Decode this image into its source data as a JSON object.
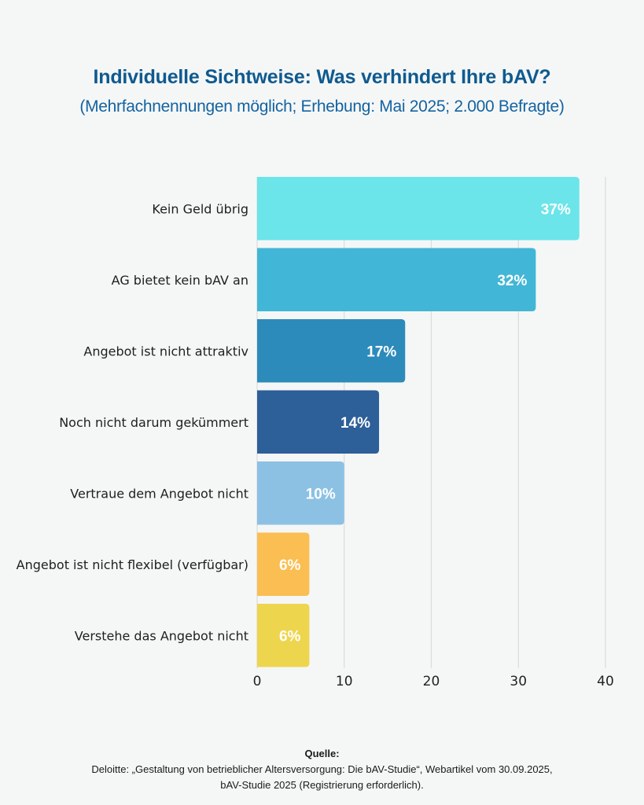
{
  "header": {
    "title": "Individuelle Sichtweise: Was verhindert Ihre bAV?",
    "subtitle": "(Mehrfachnennungen möglich; Erhebung: Mai 2025; 2.000 Befragte)"
  },
  "chart_data": {
    "type": "bar",
    "orientation": "horizontal",
    "title": "Individuelle Sichtweise: Was verhindert Ihre bAV?",
    "subtitle": "(Mehrfachnennungen möglich; Erhebung: Mai 2025; 2.000 Befragte)",
    "xlabel": "",
    "ylabel": "",
    "categories": [
      "Kein Geld übrig",
      "AG bietet kein bAV an",
      "Angebot ist nicht attraktiv",
      "Noch nicht darum gekümmert",
      "Vertraue dem Angebot nicht",
      "Angebot ist nicht flexibel (verfügbar)",
      "Verstehe das Angebot nicht"
    ],
    "values": [
      37,
      32,
      17,
      14,
      10,
      6,
      6
    ],
    "value_labels": [
      "37%",
      "32%",
      "17%",
      "14%",
      "10%",
      "6%",
      "6%"
    ],
    "colors": [
      "#6be5e9",
      "#42b6d6",
      "#2c8bba",
      "#2d5f98",
      "#8cc1e4",
      "#fabe52",
      "#eed54e"
    ],
    "xlim": [
      0,
      40
    ],
    "xticks": [
      0,
      10,
      20,
      30,
      40
    ],
    "xtick_labels": [
      "0",
      "10",
      "20",
      "30",
      "40"
    ],
    "grid": true,
    "legend": "none"
  },
  "source": {
    "heading": "Quelle:",
    "line1": "Deloitte: „Gestaltung von betrieblicher Altersversorgung: Die bAV-Studie“, Webartikel vom 30.09.2025,",
    "line2": "bAV-Studie 2025 (Registrierung erforderlich)."
  }
}
